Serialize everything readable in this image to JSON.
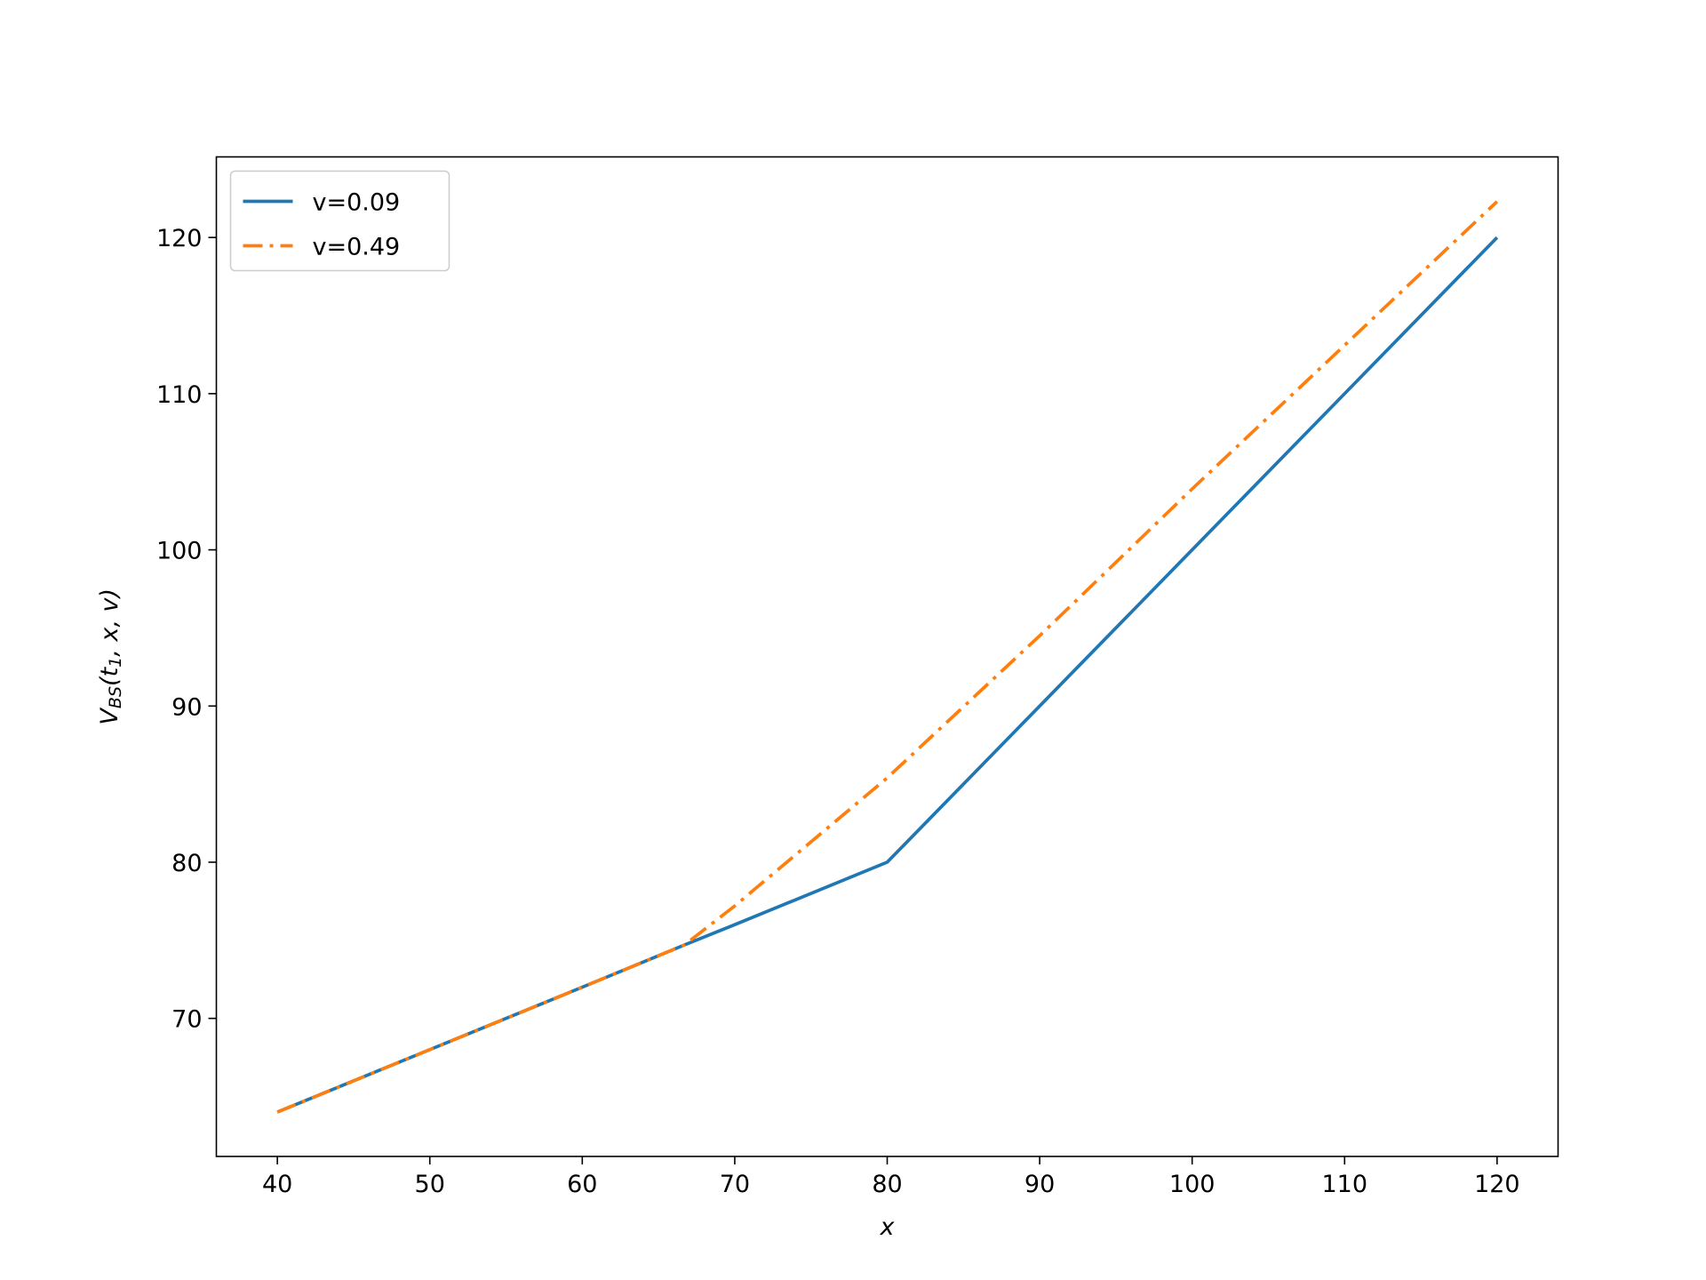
{
  "chart_data": {
    "type": "line",
    "x_label": "x",
    "y_label": [
      {
        "text": "V",
        "sub": false
      },
      {
        "text": "BS",
        "sub": true
      },
      {
        "text": "(t",
        "sub": false
      },
      {
        "text": "1",
        "sub": true
      },
      {
        "text": ", x, v)",
        "sub": false
      }
    ],
    "x": [
      40,
      50,
      60,
      66.7,
      70,
      80,
      90,
      100,
      110,
      120
    ],
    "series": [
      {
        "name": "v=0.09",
        "color": "#1f77b4",
        "dash": "solid",
        "values": [
          64,
          68,
          72,
          74.7,
          76,
          80,
          90,
          100,
          110,
          120
        ]
      },
      {
        "name": "v=0.49",
        "color": "#ff7f0e",
        "dash": "dashdot",
        "values": [
          64,
          68,
          72,
          74.7,
          77.2,
          85.4,
          94.5,
          103.9,
          113.1,
          122.3
        ]
      }
    ],
    "xlim": [
      36,
      124
    ],
    "ylim": [
      61.16,
      125.16
    ],
    "xticks": [
      40,
      50,
      60,
      70,
      80,
      90,
      100,
      110,
      120
    ],
    "yticks": [
      70,
      80,
      90,
      100,
      110,
      120
    ],
    "legend": "upper left",
    "grid": false
  }
}
